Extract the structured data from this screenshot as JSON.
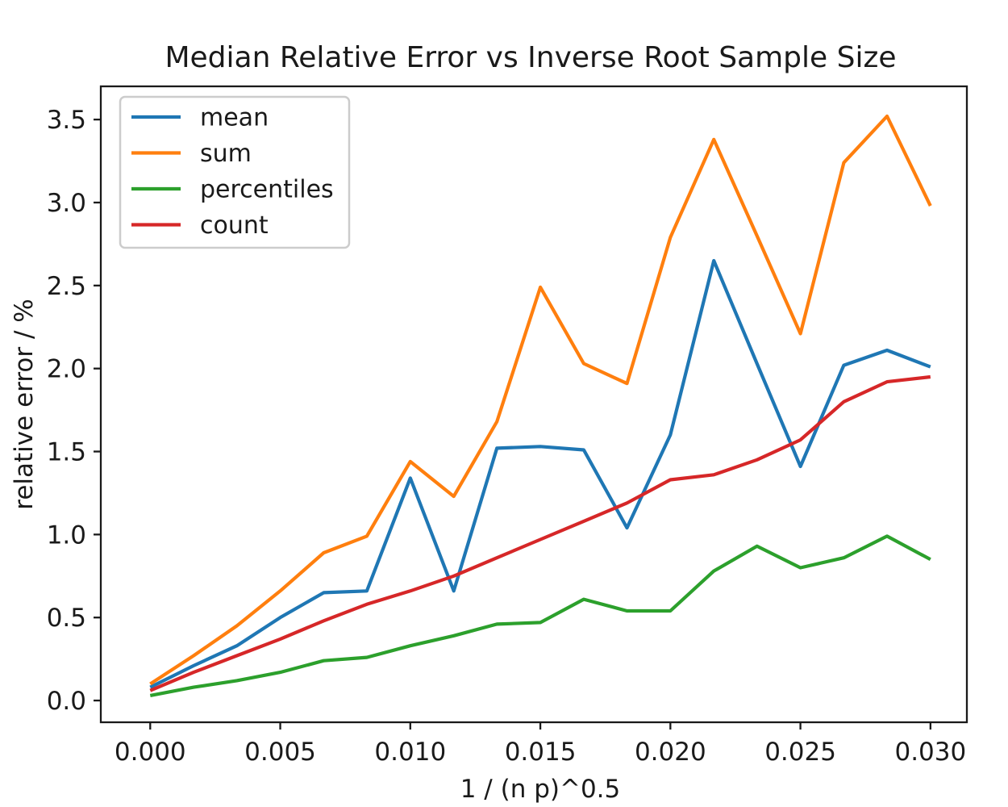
{
  "figure": {
    "background": "#ffffff",
    "spine_color": "#1a1a1a",
    "text_color": "#1a1a1a"
  },
  "chart_data": {
    "type": "line",
    "title": "Median Relative Error vs Inverse Root Sample Size",
    "xlabel": "1 / (n p)^0.5",
    "ylabel": "relative error / %",
    "grid": false,
    "legend_position": "upper left",
    "xlim": [
      -0.0019,
      0.0314
    ],
    "ylim": [
      -0.131,
      3.7
    ],
    "x_ticks": {
      "values": [
        0.0,
        0.005,
        0.01,
        0.015,
        0.02,
        0.025,
        0.03
      ],
      "labels": [
        "0.000",
        "0.005",
        "0.010",
        "0.015",
        "0.020",
        "0.025",
        "0.030"
      ]
    },
    "y_ticks": {
      "values": [
        0.0,
        0.5,
        1.0,
        1.5,
        2.0,
        2.5,
        3.0,
        3.5
      ],
      "labels": [
        "0.0",
        "0.5",
        "1.0",
        "1.5",
        "2.0",
        "2.5",
        "3.0",
        "3.5"
      ]
    },
    "x": [
      0.0,
      0.00167,
      0.00333,
      0.005,
      0.00667,
      0.00833,
      0.01,
      0.01167,
      0.01333,
      0.015,
      0.01667,
      0.01833,
      0.02,
      0.02167,
      0.02333,
      0.025,
      0.02667,
      0.02833,
      0.03
    ],
    "series": [
      {
        "name": "mean",
        "color": "#1f77b4",
        "values": [
          0.08,
          0.21,
          0.33,
          0.5,
          0.65,
          0.66,
          1.34,
          0.66,
          1.52,
          1.53,
          1.51,
          1.04,
          1.6,
          2.65,
          2.03,
          1.41,
          2.02,
          2.11,
          2.01
        ]
      },
      {
        "name": "sum",
        "color": "#ff7f0e",
        "values": [
          0.1,
          0.27,
          0.45,
          0.66,
          0.89,
          0.99,
          1.44,
          1.23,
          1.68,
          2.49,
          2.03,
          1.91,
          2.79,
          3.38,
          2.8,
          2.21,
          3.24,
          3.52,
          2.98
        ]
      },
      {
        "name": "percentiles",
        "color": "#2ca02c",
        "values": [
          0.03,
          0.08,
          0.12,
          0.17,
          0.24,
          0.26,
          0.33,
          0.39,
          0.46,
          0.47,
          0.61,
          0.54,
          0.54,
          0.78,
          0.93,
          0.8,
          0.86,
          0.99,
          0.85
        ]
      },
      {
        "name": "count",
        "color": "#d62728",
        "values": [
          0.06,
          0.17,
          0.27,
          0.37,
          0.48,
          0.58,
          0.66,
          0.75,
          0.86,
          0.97,
          1.08,
          1.19,
          1.33,
          1.36,
          1.45,
          1.57,
          1.8,
          1.92,
          1.95
        ]
      }
    ]
  }
}
